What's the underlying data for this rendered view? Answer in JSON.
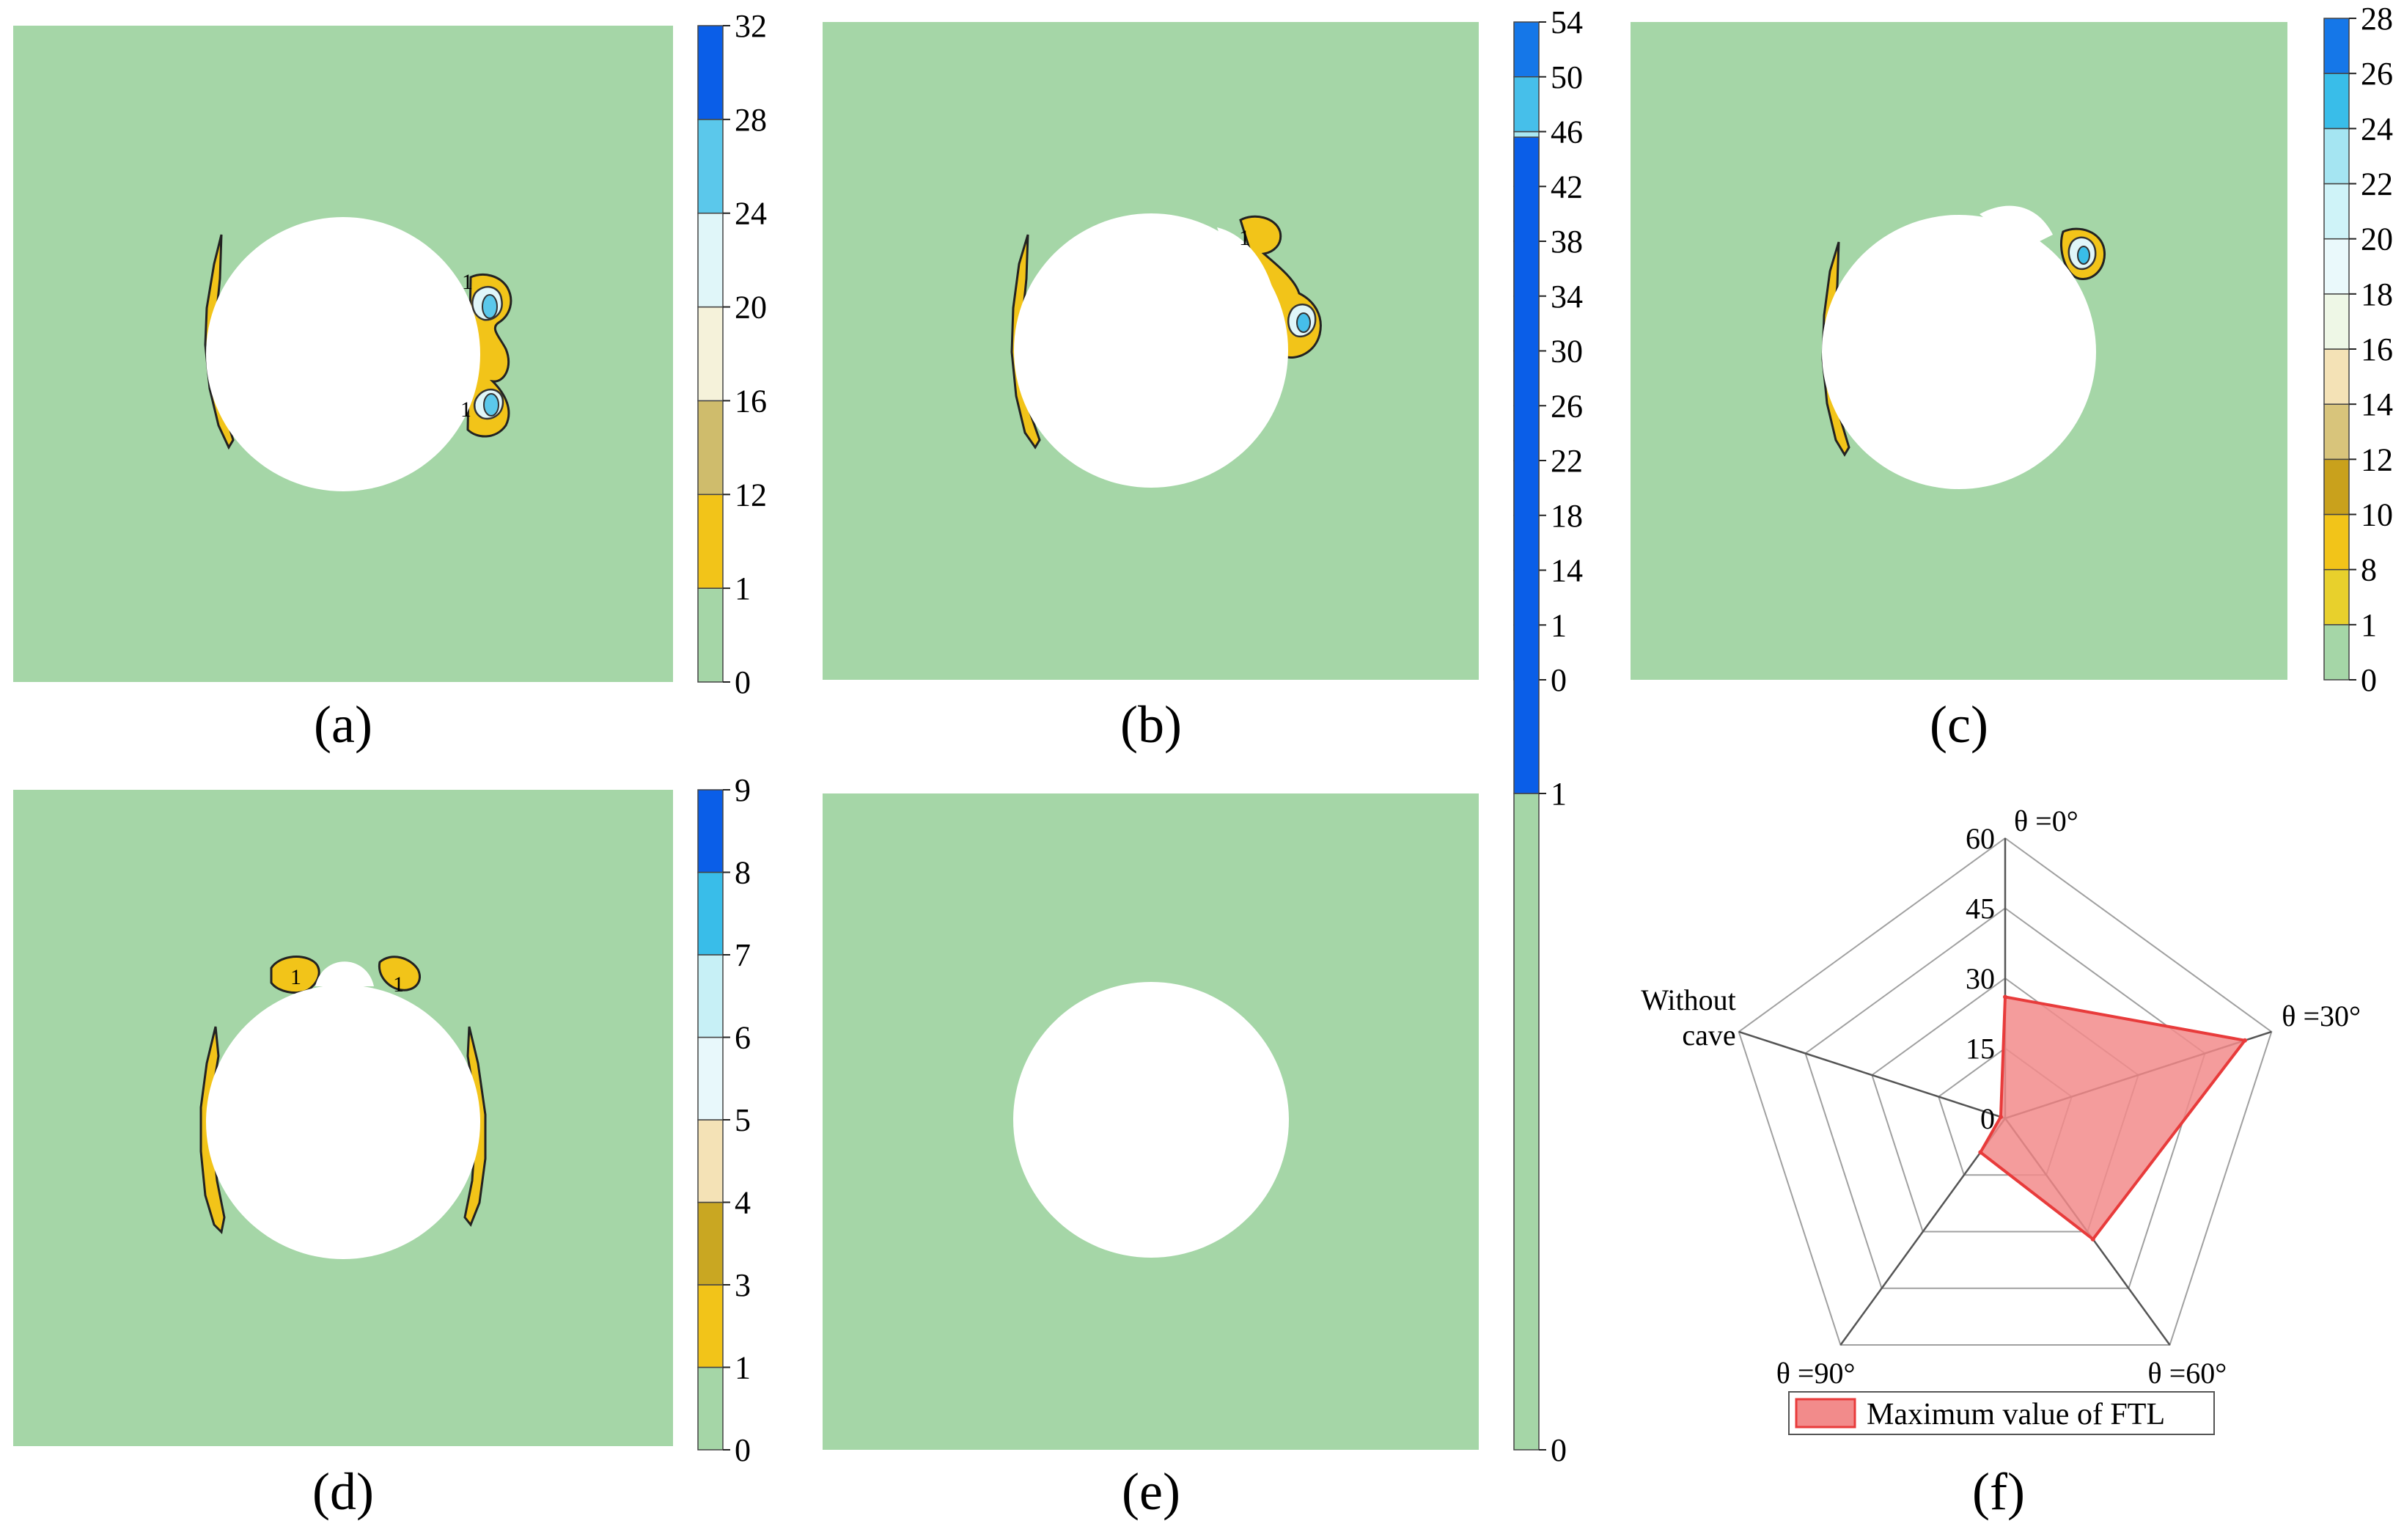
{
  "colors": {
    "background_field": "#a5d6a7",
    "yield": "#f2c419",
    "hole": "#ffffff",
    "radar_fill": "#f28b8b",
    "radar_stroke": "#e83b3b",
    "grid": "#a0a0a0"
  },
  "panels": [
    {
      "id": "a",
      "label": "(a)",
      "colorbar": {
        "ticks": [
          "0",
          "1",
          "12",
          "16",
          "20",
          "24",
          "28",
          "32"
        ],
        "colors": [
          "#a5d6a7",
          "#f2c419",
          "#cfbc6c",
          "#f5f2da",
          "#e0f6f9",
          "#5bc8eb",
          "#0a5ee8"
        ]
      }
    },
    {
      "id": "b",
      "label": "(b)",
      "colorbar": {
        "ticks": [
          "0",
          "1",
          "14",
          "18",
          "22",
          "26",
          "30",
          "34",
          "38",
          "42",
          "46",
          "50",
          "54"
        ],
        "colors": [
          "#a5d6a7",
          "#d9c843",
          "#f2c419",
          "#e39e0e",
          "#cfbc6c",
          "#f4e2b6",
          "#f5f2da",
          "#eaf9fb",
          "#d6f4fb",
          "#a9e8f3",
          "#46bfea",
          "#1577e8"
        ]
      }
    },
    {
      "id": "c",
      "label": "(c)",
      "colorbar": {
        "ticks": [
          "0",
          "1",
          "8",
          "10",
          "12",
          "14",
          "16",
          "18",
          "20",
          "22",
          "24",
          "26",
          "28"
        ],
        "colors": [
          "#a5d6a7",
          "#e8d02c",
          "#f2c419",
          "#c9a11c",
          "#d8c47b",
          "#f4e2b6",
          "#eef7e6",
          "#eaf9fb",
          "#cff3f8",
          "#a5e5f2",
          "#39bde9",
          "#1577e8"
        ]
      }
    },
    {
      "id": "d",
      "label": "(d)",
      "colorbar": {
        "ticks": [
          "0",
          "1",
          "3",
          "4",
          "5",
          "6",
          "7",
          "8",
          "9"
        ],
        "colors": [
          "#a5d6a7",
          "#f2c419",
          "#c9a722",
          "#f4e2b6",
          "#e8f8fb",
          "#c7f0f6",
          "#39bde9",
          "#0a5ee8"
        ]
      }
    },
    {
      "id": "e",
      "label": "(e)",
      "colorbar": {
        "ticks": [
          "0",
          "1"
        ],
        "colors": [
          "#a5d6a7",
          "#0a5ee8"
        ]
      }
    }
  ],
  "contour_labels": [
    "1",
    "1",
    "1",
    "1",
    "1",
    "1"
  ],
  "chart_data": {
    "type": "radar",
    "label": "(f)",
    "axes": [
      "θ =0°",
      "θ =30°",
      "θ =60°",
      "θ =90°",
      "Without cave"
    ],
    "radial_ticks": [
      "0",
      "15",
      "30",
      "45",
      "60"
    ],
    "rmax": 60,
    "series": [
      {
        "name": "Maximum value of FTL",
        "values": [
          26,
          54,
          32,
          9,
          1
        ]
      }
    ],
    "legend": "Maximum value of FTL"
  }
}
